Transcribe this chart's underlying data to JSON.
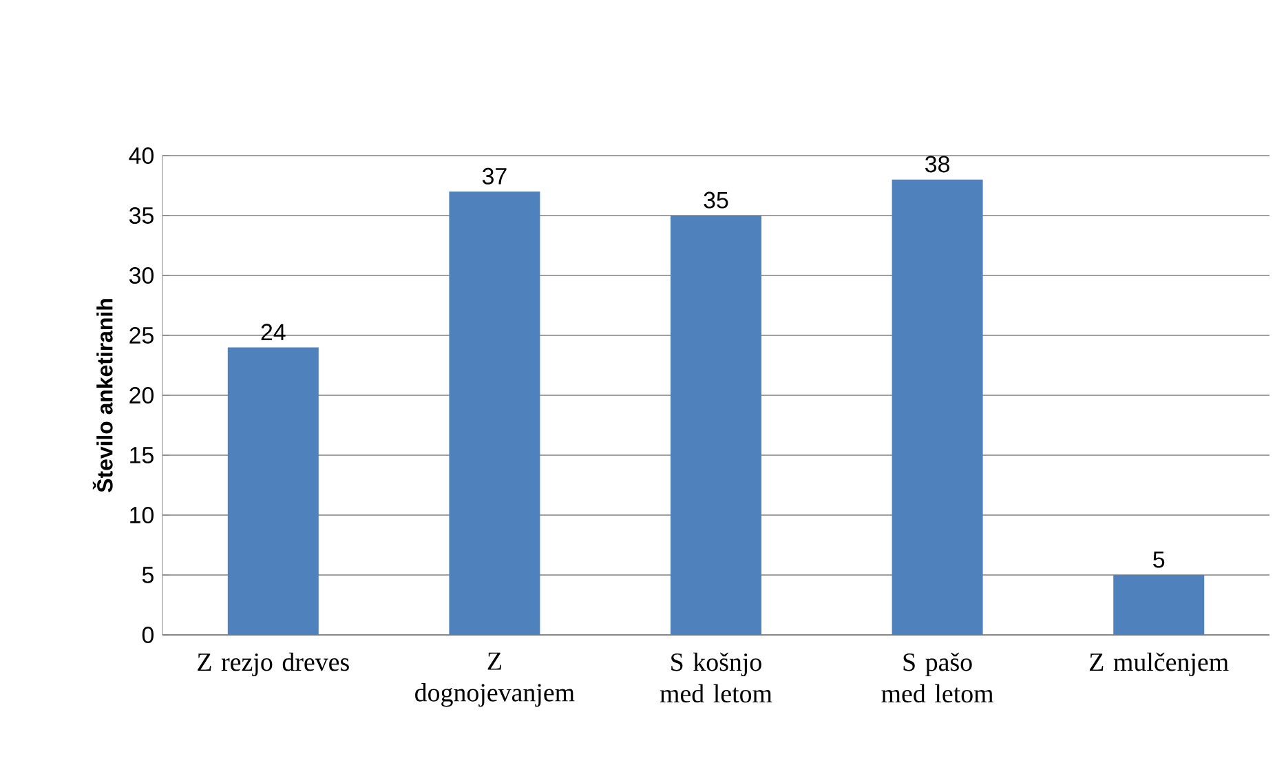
{
  "chart_data": {
    "type": "bar",
    "ylabel": "Število anketiranih",
    "categories": [
      "Z rezjo dreves",
      "Z dognojevanjem",
      "S košnjo med letom",
      "S pašo med letom",
      "Z mulčenjem"
    ],
    "values": [
      24,
      37,
      35,
      38,
      5
    ],
    "color": "#4f81bd",
    "ylim": [
      0,
      40
    ],
    "yticks": [
      0,
      5,
      10,
      15,
      20,
      25,
      30,
      35,
      40
    ],
    "grid": "y",
    "data_labels": true
  }
}
